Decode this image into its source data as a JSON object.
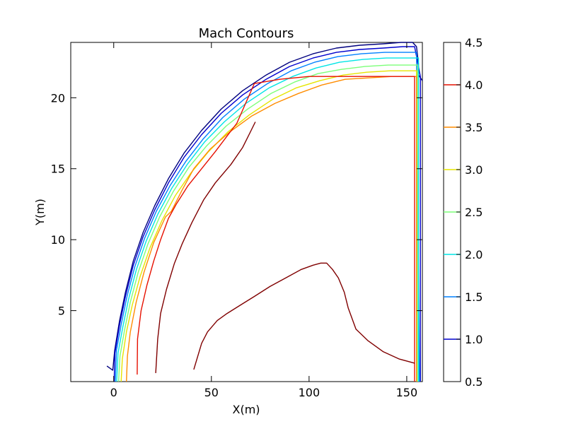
{
  "chart_data": {
    "type": "contour",
    "title": "Mach Contours",
    "xlabel": "X(m)",
    "ylabel": "Y(m)",
    "xlim": [
      -22,
      158
    ],
    "ylim": [
      0,
      23.9
    ],
    "xticks": [
      0,
      50,
      100,
      150
    ],
    "xtick_labels": [
      "0",
      "50",
      "100",
      "150"
    ],
    "yticks": [
      5,
      10,
      15,
      20
    ],
    "ytick_labels": [
      "5",
      "10",
      "15",
      "20"
    ],
    "grid": false,
    "colorbar": {
      "range": [
        0.5,
        4.5
      ],
      "ticks": [
        0.5,
        1.0,
        1.5,
        2.0,
        2.5,
        3.0,
        3.5,
        4.0,
        4.5
      ],
      "tick_labels": [
        "0.5",
        "1.0",
        "1.5",
        "2.0",
        "2.5",
        "3.0",
        "3.5",
        "4.0",
        "4.5"
      ],
      "line_levels": [
        {
          "level": 1.0,
          "color": "#0000cd"
        },
        {
          "level": 1.5,
          "color": "#0080ff"
        },
        {
          "level": 2.0,
          "color": "#00e5e5"
        },
        {
          "level": 2.5,
          "color": "#7cff79"
        },
        {
          "level": 3.0,
          "color": "#e5e500"
        },
        {
          "level": 3.5,
          "color": "#ff8c00"
        },
        {
          "level": 4.0,
          "color": "#e61000"
        }
      ]
    },
    "series": [
      {
        "level": 0.5,
        "color": "#00007f",
        "points": [
          [
            -3.5,
            1.1
          ],
          [
            -0.5,
            0.8
          ],
          [
            0.5,
            2.2
          ],
          [
            3,
            4.3
          ],
          [
            6,
            6.3
          ],
          [
            10,
            8.5
          ],
          [
            15,
            10.5
          ],
          [
            21,
            12.4
          ],
          [
            28,
            14.3
          ],
          [
            36,
            16.1
          ],
          [
            45,
            17.7
          ],
          [
            55,
            19.2
          ],
          [
            66,
            20.5
          ],
          [
            78,
            21.6
          ],
          [
            90,
            22.5
          ],
          [
            102,
            23.1
          ],
          [
            114,
            23.5
          ],
          [
            126,
            23.7
          ],
          [
            138,
            23.8
          ],
          [
            147,
            23.9
          ],
          [
            153,
            23.9
          ],
          [
            155,
            23.6
          ],
          [
            156,
            22.4
          ],
          [
            156,
            21.6
          ],
          [
            158,
            21.2
          ]
        ]
      },
      {
        "level": 1.0,
        "color": "#0000cd",
        "points": [
          [
            0.2,
            0
          ],
          [
            0.6,
            2.0
          ],
          [
            3,
            4.0
          ],
          [
            6,
            6.0
          ],
          [
            10,
            8.2
          ],
          [
            15,
            10.2
          ],
          [
            21,
            12.1
          ],
          [
            28,
            14.0
          ],
          [
            36,
            15.8
          ],
          [
            45,
            17.4
          ],
          [
            55,
            18.9
          ],
          [
            66,
            20.2
          ],
          [
            78,
            21.3
          ],
          [
            90,
            22.2
          ],
          [
            102,
            22.8
          ],
          [
            114,
            23.2
          ],
          [
            126,
            23.4
          ],
          [
            138,
            23.5
          ],
          [
            148,
            23.6
          ],
          [
            154,
            23.6
          ],
          [
            157,
            21.5
          ],
          [
            157,
            0
          ]
        ]
      },
      {
        "level": 1.5,
        "color": "#0080ff",
        "points": [
          [
            0.8,
            0
          ],
          [
            1.4,
            2.2
          ],
          [
            3.8,
            4.0
          ],
          [
            6.8,
            6.0
          ],
          [
            10.8,
            8.1
          ],
          [
            15.8,
            10.1
          ],
          [
            21.8,
            12.0
          ],
          [
            28.8,
            13.8
          ],
          [
            36.8,
            15.5
          ],
          [
            45.8,
            17.1
          ],
          [
            55.8,
            18.6
          ],
          [
            66.8,
            19.9
          ],
          [
            78.8,
            21.0
          ],
          [
            90.8,
            21.9
          ],
          [
            102.8,
            22.5
          ],
          [
            114.8,
            22.9
          ],
          [
            126.8,
            23.1
          ],
          [
            138.8,
            23.2
          ],
          [
            148,
            23.2
          ],
          [
            155,
            23.2
          ],
          [
            156.5,
            0
          ]
        ]
      },
      {
        "level": 2.0,
        "color": "#00e5e5",
        "points": [
          [
            1.5,
            0
          ],
          [
            2.2,
            2.0
          ],
          [
            4.6,
            3.8
          ],
          [
            7.6,
            5.8
          ],
          [
            11.6,
            7.9
          ],
          [
            16.6,
            9.9
          ],
          [
            22.6,
            11.8
          ],
          [
            29.6,
            13.6
          ],
          [
            37.6,
            15.3
          ],
          [
            46.6,
            16.9
          ],
          [
            56.6,
            18.3
          ],
          [
            67.6,
            19.6
          ],
          [
            79.6,
            20.7
          ],
          [
            91.6,
            21.5
          ],
          [
            103.6,
            22.1
          ],
          [
            115.6,
            22.5
          ],
          [
            127.6,
            22.7
          ],
          [
            139.6,
            22.8
          ],
          [
            149,
            22.8
          ],
          [
            156,
            22.8
          ],
          [
            156,
            0
          ]
        ]
      },
      {
        "level": 2.5,
        "color": "#7cff79",
        "points": [
          [
            2.5,
            0
          ],
          [
            3.2,
            1.8
          ],
          [
            5.5,
            3.6
          ],
          [
            8.5,
            5.6
          ],
          [
            12.5,
            7.7
          ],
          [
            17.5,
            9.7
          ],
          [
            23.5,
            11.6
          ],
          [
            30.5,
            13.4
          ],
          [
            38.5,
            15.1
          ],
          [
            47.5,
            16.6
          ],
          [
            57.5,
            18.0
          ],
          [
            68.5,
            19.2
          ],
          [
            80.5,
            20.3
          ],
          [
            92.5,
            21.1
          ],
          [
            104.5,
            21.7
          ],
          [
            116.5,
            22.0
          ],
          [
            128.5,
            22.2
          ],
          [
            140.5,
            22.3
          ],
          [
            150,
            22.3
          ],
          [
            155.5,
            22.3
          ],
          [
            155.5,
            0
          ]
        ]
      },
      {
        "level": 3.0,
        "color": "#e5e500",
        "points": [
          [
            3.8,
            0
          ],
          [
            4.4,
            1.6
          ],
          [
            6.5,
            3.5
          ],
          [
            9.5,
            5.4
          ],
          [
            13.5,
            7.4
          ],
          [
            18.5,
            9.4
          ],
          [
            24.5,
            11.3
          ],
          [
            31.5,
            13.1
          ],
          [
            39.5,
            14.7
          ],
          [
            48.5,
            16.2
          ],
          [
            58.5,
            17.6
          ],
          [
            69.5,
            18.8
          ],
          [
            81.5,
            19.9
          ],
          [
            93.5,
            20.7
          ],
          [
            105.5,
            21.2
          ],
          [
            117.5,
            21.6
          ],
          [
            129.5,
            21.8
          ],
          [
            141.5,
            21.9
          ],
          [
            150,
            21.9
          ],
          [
            155,
            21.9
          ],
          [
            155,
            0
          ]
        ]
      },
      {
        "level": 3.5,
        "color": "#ff8c00",
        "points": [
          [
            6.5,
            0
          ],
          [
            7.0,
            1.8
          ],
          [
            8.5,
            3.5
          ],
          [
            11.5,
            5.6
          ],
          [
            15.5,
            7.7
          ],
          [
            20.5,
            9.8
          ],
          [
            26.5,
            11.6
          ],
          [
            29.5,
            12.0
          ],
          [
            35,
            13.5
          ],
          [
            41,
            15.0
          ],
          [
            49.5,
            16.4
          ],
          [
            59.5,
            17.6
          ],
          [
            70.5,
            18.7
          ],
          [
            82.5,
            19.6
          ],
          [
            94.5,
            20.3
          ],
          [
            106.5,
            20.9
          ],
          [
            118.5,
            21.3
          ],
          [
            130.5,
            21.4
          ],
          [
            142.5,
            21.5
          ],
          [
            150,
            21.5
          ],
          [
            155,
            21.5
          ],
          [
            155,
            0
          ]
        ]
      },
      {
        "level": 4.0,
        "color": "#e61000",
        "points": [
          [
            12,
            0.5
          ],
          [
            12.2,
            3.0
          ],
          [
            14,
            5.0
          ],
          [
            17,
            6.8
          ],
          [
            20.5,
            8.5
          ],
          [
            24,
            10.0
          ],
          [
            28,
            11.5
          ],
          [
            32,
            12.5
          ],
          [
            38,
            13.8
          ],
          [
            45,
            15.0
          ],
          [
            52,
            16.2
          ],
          [
            58,
            17.3
          ],
          [
            63,
            18.2
          ],
          [
            72,
            21.0
          ],
          [
            85,
            21.3
          ],
          [
            100,
            21.5
          ],
          [
            120,
            21.5
          ],
          [
            140,
            21.5
          ],
          [
            154,
            21.5
          ],
          [
            154,
            0
          ]
        ]
      },
      {
        "level": 4.5,
        "color": "#800000",
        "points": [
          [
            21.5,
            0.6
          ],
          [
            22.5,
            3.0
          ],
          [
            24,
            4.8
          ],
          [
            27,
            6.5
          ],
          [
            31,
            8.3
          ],
          [
            35,
            9.7
          ],
          [
            40,
            11.2
          ],
          [
            46,
            12.8
          ],
          [
            52,
            14.0
          ],
          [
            60,
            15.3
          ],
          [
            66,
            16.5
          ],
          [
            70,
            17.6
          ],
          [
            72.5,
            18.3
          ]
        ]
      },
      {
        "level": 4.6,
        "color": "#800000",
        "points": [
          [
            41,
            0.85
          ],
          [
            45,
            2.7
          ],
          [
            48,
            3.5
          ],
          [
            53,
            4.3
          ],
          [
            58,
            4.8
          ],
          [
            65,
            5.4
          ],
          [
            72,
            6.0
          ],
          [
            80,
            6.7
          ],
          [
            88,
            7.3
          ],
          [
            96,
            7.9
          ],
          [
            102,
            8.2
          ],
          [
            106,
            8.35
          ],
          [
            109,
            8.35
          ],
          [
            112,
            7.9
          ],
          [
            115,
            7.3
          ],
          [
            118,
            6.3
          ],
          [
            120,
            5.2
          ],
          [
            124,
            3.7
          ],
          [
            130,
            2.9
          ],
          [
            138,
            2.1
          ],
          [
            146,
            1.6
          ],
          [
            154,
            1.3
          ]
        ]
      }
    ]
  }
}
